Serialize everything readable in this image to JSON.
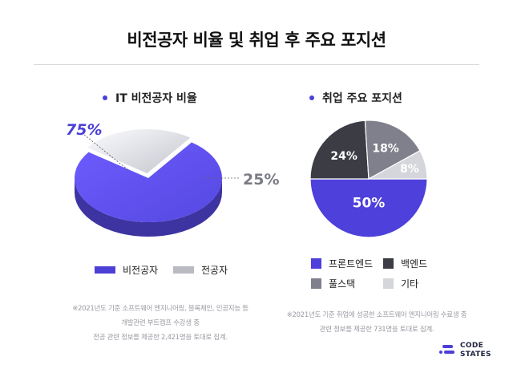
{
  "title": "비전공자 비율 및 취업 후 주요 포지션",
  "colors": {
    "accent": "#4b3fd6",
    "primary_purple": "#4d40db",
    "light_gray": "#d4d4dc",
    "dark_gray": "#3b3c44",
    "mid_gray": "#7f808b",
    "very_light_gray": "#d5d5dc"
  },
  "chart_data": [
    {
      "type": "pie",
      "title": "IT 비전공자 비율",
      "labels": [
        "비전공자",
        "전공자"
      ],
      "values": [
        75,
        25
      ],
      "value_labels": [
        "75%",
        "25%"
      ],
      "colors": [
        "#5548e0",
        "#c4c5cd"
      ],
      "legend_position": "bottom",
      "note_lines": [
        "※2021년도 기준 소프트웨어 엔지니어링, 블록체인, 인공지능 등",
        "개발관련 부트캠프 수강생 중",
        "전공 관련 정보를 제공한 2,421명을 토대로 집계."
      ]
    },
    {
      "type": "pie",
      "title": "취업 주요 포지션",
      "labels": [
        "프론트엔드",
        "백엔드",
        "풀스택",
        "기타"
      ],
      "values": [
        50,
        24,
        18,
        8
      ],
      "value_labels": [
        "50%",
        "24%",
        "18%",
        "8%"
      ],
      "colors": [
        "#4d40db",
        "#3b3c44",
        "#7f808b",
        "#d5d5dc"
      ],
      "legend_position": "bottom",
      "note_lines": [
        "※2021년도 기준 취업에 성공한 소프트웨어 엔지니어링 수료생 중",
        "관련 정보를 제공한 731명을 토대로 집계."
      ]
    }
  ],
  "logo": {
    "line1": "CODE",
    "line2": "STATES"
  }
}
